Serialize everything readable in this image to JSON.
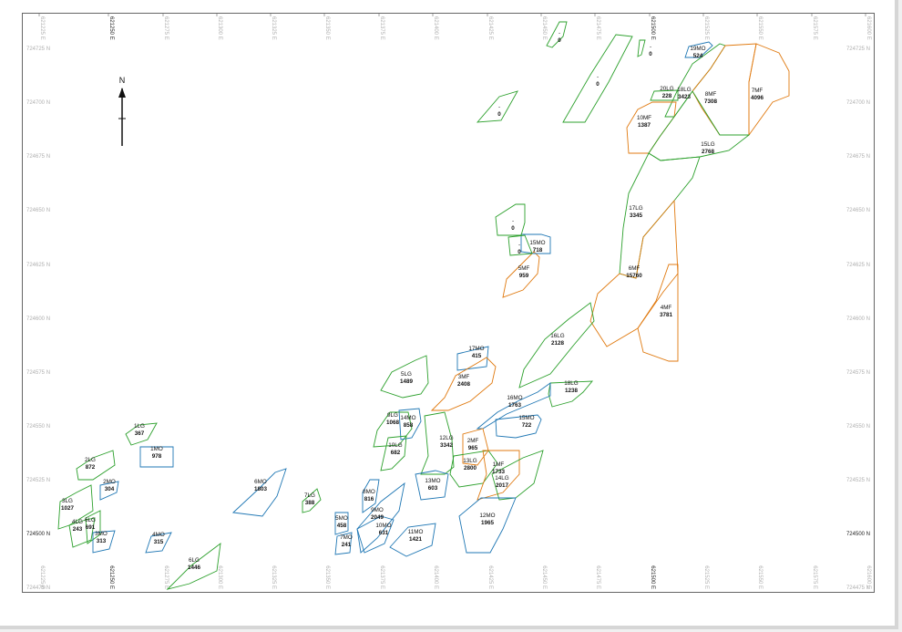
{
  "map": {
    "north_label": "N",
    "colors": {
      "LG": "#2ca02c",
      "MF": "#e07a10",
      "MO": "#1f77b4",
      "blank": "#2ca02c"
    },
    "easting_labels": [
      "621225 E",
      "621250 E",
      "621275 E",
      "621300 E",
      "621325 E",
      "621350 E",
      "621375 E",
      "621400 E",
      "621425 E",
      "621450 E",
      "621475 E",
      "621500 E",
      "621525 E",
      "621550 E",
      "621575 E",
      "621600 E"
    ],
    "northing_labels": [
      "724725 N",
      "724700 N",
      "724675 N",
      "724650 N",
      "724625 N",
      "724600 N",
      "724575 N",
      "724550 N",
      "724525 N",
      "724500 N",
      "724475 N"
    ],
    "bold_easting": [
      "621250 E",
      "621500 E"
    ],
    "bold_northing": [
      "724500 N"
    ],
    "blocks": [
      {
        "id": "19MO",
        "value": "524",
        "type": "MO"
      },
      {
        "id": "20LG",
        "value": "228",
        "type": "LG"
      },
      {
        "id": "18LG",
        "value": "3423",
        "type": "LG"
      },
      {
        "id": "8MF",
        "value": "7308",
        "type": "MF"
      },
      {
        "id": "7MF",
        "value": "4096",
        "type": "MF"
      },
      {
        "id": "10MF",
        "value": "1387",
        "type": "MF"
      },
      {
        "id": "15LG",
        "value": "2768",
        "type": "LG"
      },
      {
        "id": "17LG",
        "value": "3345",
        "type": "LG"
      },
      {
        "id": "6MF",
        "value": "15760",
        "type": "MF"
      },
      {
        "id": "4MF",
        "value": "3781",
        "type": "MF"
      },
      {
        "id": "5MF",
        "value": "959",
        "type": "MF"
      },
      {
        "id": "15MO",
        "value": "718",
        "type": "MO"
      },
      {
        "id": "16LG",
        "value": "2128",
        "type": "LG"
      },
      {
        "id": "17MO",
        "value": "415",
        "type": "MO"
      },
      {
        "id": "3MF",
        "value": "2408",
        "type": "MF"
      },
      {
        "id": "5LG",
        "value": "1489",
        "type": "LG"
      },
      {
        "id": "18LG",
        "value": "1238",
        "type": "LG"
      },
      {
        "id": "16MO",
        "value": "1763",
        "type": "MO"
      },
      {
        "id": "15MO",
        "value": "722",
        "type": "MO"
      },
      {
        "id": "9LG",
        "value": "1068",
        "type": "LG"
      },
      {
        "id": "14MO",
        "value": "858",
        "type": "MO"
      },
      {
        "id": "10LG",
        "value": "682",
        "type": "LG"
      },
      {
        "id": "12LG",
        "value": "3342",
        "type": "LG"
      },
      {
        "id": "2MF",
        "value": "965",
        "type": "MF"
      },
      {
        "id": "13LG",
        "value": "2800",
        "type": "LG"
      },
      {
        "id": "1MF",
        "value": "1733",
        "type": "MF"
      },
      {
        "id": "14LG",
        "value": "2017",
        "type": "LG"
      },
      {
        "id": "13MO",
        "value": "603",
        "type": "MO"
      },
      {
        "id": "12MO",
        "value": "1965",
        "type": "MO"
      },
      {
        "id": "1LG",
        "value": "367",
        "type": "LG"
      },
      {
        "id": "1MO",
        "value": "978",
        "type": "MO"
      },
      {
        "id": "2LG",
        "value": "872",
        "type": "LG"
      },
      {
        "id": "2MO",
        "value": "304",
        "type": "MO"
      },
      {
        "id": "3LG",
        "value": "1027",
        "type": "LG"
      },
      {
        "id": "4LG",
        "value": "243",
        "type": "LG"
      },
      {
        "id": "6LG",
        "value": "691",
        "type": "LG"
      },
      {
        "id": "3MO",
        "value": "313",
        "type": "MO"
      },
      {
        "id": "4MO",
        "value": "315",
        "type": "MO"
      },
      {
        "id": "6LG",
        "value": "1446",
        "type": "LG"
      },
      {
        "id": "6MO",
        "value": "1803",
        "type": "MO"
      },
      {
        "id": "7LG",
        "value": "388",
        "type": "LG"
      },
      {
        "id": "5MO",
        "value": "458",
        "type": "MO"
      },
      {
        "id": "7MO",
        "value": "241",
        "type": "MO"
      },
      {
        "id": "8MO",
        "value": "816",
        "type": "MO"
      },
      {
        "id": "9MO",
        "value": "2049",
        "type": "MO"
      },
      {
        "id": "10MO",
        "value": "631",
        "type": "MO"
      },
      {
        "id": "11MO",
        "value": "1421",
        "type": "MO"
      },
      {
        "id": "-",
        "value": "0",
        "type": "blank"
      },
      {
        "id": "-",
        "value": "0",
        "type": "blank"
      },
      {
        "id": "-",
        "value": "0",
        "type": "blank"
      },
      {
        "id": "-",
        "value": "0",
        "type": "blank"
      },
      {
        "id": "-",
        "value": "0",
        "type": "blank"
      },
      {
        "id": "-",
        "value": "0",
        "type": "blank"
      }
    ]
  }
}
